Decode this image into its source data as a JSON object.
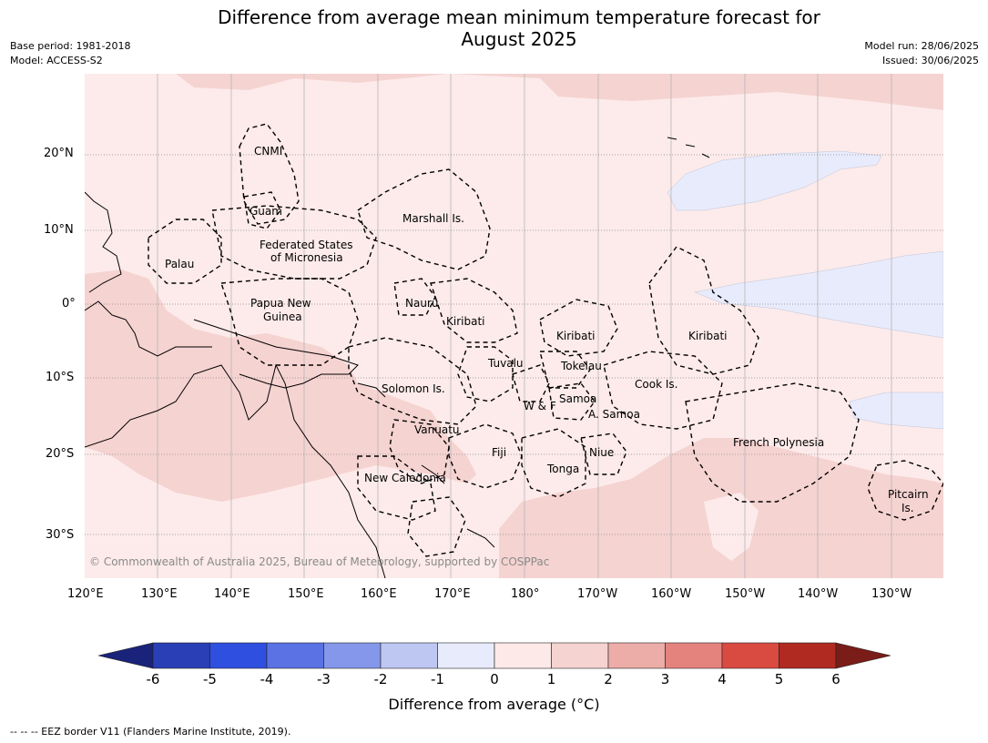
{
  "title_line1": "Difference from average mean minimum temperature forecast for",
  "title_line2": "August 2025",
  "meta_left": [
    "Base period: 1981-2018",
    "Model: ACCESS-S2"
  ],
  "meta_right": [
    "Model run: 28/06/2025",
    "Issued: 30/06/2025"
  ],
  "lat_ticks": [
    "20°N",
    "10°N",
    "0°",
    "10°S",
    "20°S",
    "30°S"
  ],
  "lon_ticks": [
    "120°E",
    "130°E",
    "140°E",
    "150°E",
    "160°E",
    "170°E",
    "180°",
    "170°W",
    "160°W",
    "150°W",
    "140°W",
    "130°W"
  ],
  "regions": [
    "CNMI",
    "Guam",
    "Marshall Is.",
    "Federated States",
    "of Micronesia",
    "Palau",
    "Papua New",
    "Guinea",
    "Nauru",
    "Kiribati",
    "Kiribati",
    "Kiribati",
    "Tuvalu",
    "Tokelau",
    "Cook Is.",
    "Solomon Is.",
    "Samoa",
    "W & F",
    "A. Samoa",
    "Vanuatu",
    "Fiji",
    "Niue",
    "French Polynesia",
    "Tonga",
    "New Caledonia",
    "Pitcairn",
    "Is."
  ],
  "copyright": "© Commonwealth of Australia 2025, Bureau of Meteorology, supported by COSPPac",
  "colorbar": {
    "ticks": [
      "-6",
      "-5",
      "-4",
      "-3",
      "-2",
      "-1",
      "0",
      "1",
      "2",
      "3",
      "4",
      "5",
      "6"
    ],
    "colors": [
      "#1a237a",
      "#2a3fb5",
      "#2f4fe0",
      "#5a72e4",
      "#8597ea",
      "#bec6f2",
      "#e8ebfb",
      "#fce9e8",
      "#f5d3d1",
      "#ecaca8",
      "#e4837e",
      "#d94a41",
      "#b02a22",
      "#7a1c18"
    ],
    "title": "Difference from average ($^\\circ$C)",
    "title_display": "Difference from average (°C)"
  },
  "footer": "--  --  -- EEZ border V11 (Flanders Marine Institute, 2019)."
}
